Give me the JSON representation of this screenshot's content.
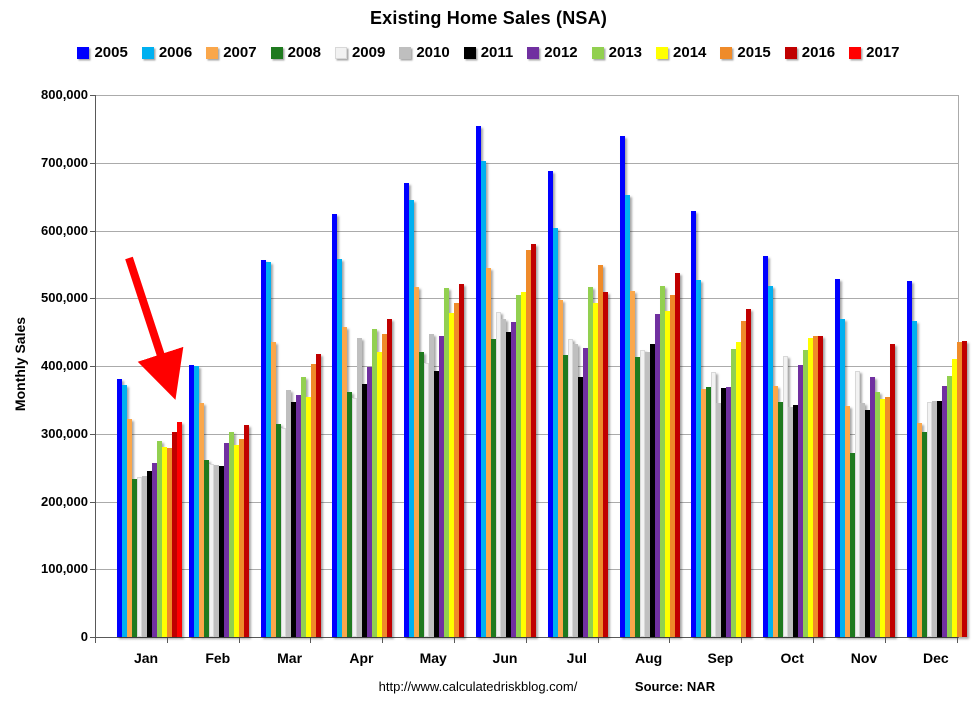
{
  "title": "Existing Home Sales (NSA)",
  "y_axis": {
    "label": "Monthly Sales",
    "tick_labels": [
      "800,000",
      "700,000",
      "600,000",
      "500,000",
      "400,000",
      "300,000",
      "200,000",
      "100,000",
      "0"
    ]
  },
  "footer": {
    "url": "http://www.calculatedriskblog.com/",
    "source": "Source: NAR"
  },
  "annotation": {
    "description": "red arrow pointing at the January 2017 bar",
    "color": "#FF0000"
  },
  "chart_data": {
    "type": "bar",
    "title": "Existing Home Sales (NSA)",
    "xlabel": "",
    "ylabel": "Monthly Sales",
    "ylim": [
      0,
      800000
    ],
    "y_tick_step": 100000,
    "grid": "horizontal gridlines every 100,000",
    "legend_position": "top",
    "categories": [
      "Jan",
      "Feb",
      "Mar",
      "Apr",
      "May",
      "Jun",
      "Jul",
      "Aug",
      "Sep",
      "Oct",
      "Nov",
      "Dec"
    ],
    "series": [
      {
        "name": "2005",
        "color": "#0000FF",
        "values": [
          381000,
          401000,
          556000,
          624000,
          670000,
          754000,
          688000,
          740000,
          629000,
          563000,
          528000,
          526000
        ]
      },
      {
        "name": "2006",
        "color": "#00B0F0",
        "values": [
          372000,
          400000,
          553000,
          558000,
          645000,
          703000,
          604000,
          653000,
          527000,
          518000,
          470000,
          467000
        ]
      },
      {
        "name": "2007",
        "color": "#FAA74B",
        "values": [
          322000,
          346000,
          435000,
          457000,
          517000,
          545000,
          498000,
          511000,
          366000,
          371000,
          341000,
          316000
        ]
      },
      {
        "name": "2008",
        "color": "#1F7A1F",
        "values": [
          233000,
          261000,
          315000,
          362000,
          420000,
          440000,
          416000,
          413000,
          369000,
          347000,
          271000,
          303000
        ]
      },
      {
        "name": "2009",
        "color": "#F2F2F2",
        "values": [
          236000,
          256000,
          308000,
          353000,
          405000,
          480000,
          440000,
          423000,
          391000,
          415000,
          393000,
          347000
        ]
      },
      {
        "name": "2010",
        "color": "#BFBFBF",
        "values": [
          237000,
          254000,
          364000,
          441000,
          447000,
          470000,
          432000,
          420000,
          345000,
          340000,
          345000,
          349000
        ]
      },
      {
        "name": "2011",
        "color": "#000000",
        "values": [
          245000,
          252000,
          347000,
          373000,
          393000,
          450000,
          384000,
          433000,
          367000,
          342000,
          335000,
          348000
        ]
      },
      {
        "name": "2012",
        "color": "#7030A0",
        "values": [
          257000,
          286000,
          357000,
          398000,
          445000,
          465000,
          427000,
          477000,
          369000,
          402000,
          384000,
          371000
        ]
      },
      {
        "name": "2013",
        "color": "#92D050",
        "values": [
          289000,
          302000,
          384000,
          455000,
          515000,
          505000,
          516000,
          518000,
          425000,
          423000,
          362000,
          385000
        ]
      },
      {
        "name": "2014",
        "color": "#FFFF00",
        "values": [
          280000,
          283000,
          354000,
          420000,
          478000,
          510000,
          493000,
          481000,
          435000,
          442000,
          352000,
          411000
        ]
      },
      {
        "name": "2015",
        "color": "#EF8B2A",
        "values": [
          279000,
          293000,
          403000,
          447000,
          493000,
          571000,
          549000,
          505000,
          467000,
          444000,
          354000,
          435000
        ]
      },
      {
        "name": "2016",
        "color": "#C00000",
        "values": [
          302000,
          313000,
          418000,
          469000,
          521000,
          580000,
          510000,
          538000,
          484000,
          445000,
          433000,
          437000
        ]
      },
      {
        "name": "2017",
        "color": "#FF0000",
        "values": [
          318000,
          null,
          null,
          null,
          null,
          null,
          null,
          null,
          null,
          null,
          null,
          null
        ]
      }
    ]
  }
}
